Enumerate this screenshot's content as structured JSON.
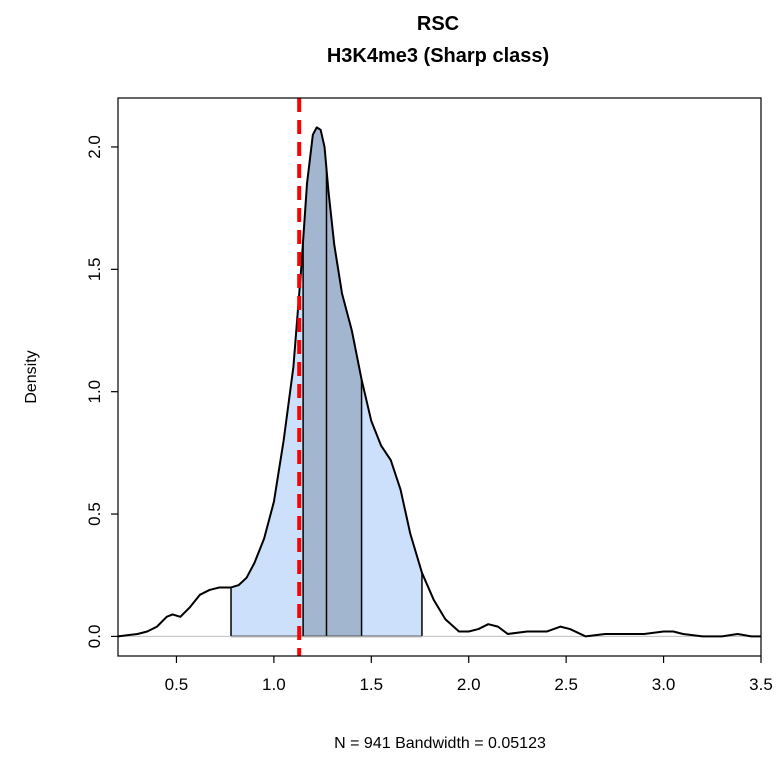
{
  "chart_data": {
    "type": "area",
    "title": "RSC",
    "subtitle": "H3K4me3 (Sharp class)",
    "xlabel": "N = 941   Bandwidth = 0.05123",
    "ylabel": "Density",
    "xlim": [
      0.2,
      3.5
    ],
    "ylim": [
      -0.08,
      2.2
    ],
    "x_ticks": [
      0.5,
      1.0,
      1.5,
      2.0,
      2.5,
      3.0,
      3.5
    ],
    "x_tick_labels": [
      "0.5",
      "1.0",
      "1.5",
      "2.0",
      "2.5",
      "3.0",
      "3.5"
    ],
    "y_ticks": [
      0.0,
      0.5,
      1.0,
      1.5,
      2.0
    ],
    "y_tick_labels": [
      "0.0",
      "0.5",
      "1.0",
      "1.5",
      "2.0"
    ],
    "grid": false,
    "density": {
      "x": [
        0.2,
        0.3,
        0.35,
        0.4,
        0.45,
        0.48,
        0.52,
        0.57,
        0.62,
        0.67,
        0.72,
        0.78,
        0.82,
        0.86,
        0.9,
        0.95,
        1.0,
        1.05,
        1.1,
        1.14,
        1.17,
        1.2,
        1.22,
        1.24,
        1.26,
        1.28,
        1.31,
        1.35,
        1.4,
        1.45,
        1.5,
        1.55,
        1.6,
        1.65,
        1.7,
        1.76,
        1.82,
        1.88,
        1.95,
        2.0,
        2.05,
        2.1,
        2.15,
        2.2,
        2.3,
        2.4,
        2.47,
        2.52,
        2.6,
        2.7,
        2.8,
        2.9,
        3.0,
        3.05,
        3.1,
        3.2,
        3.3,
        3.38,
        3.45,
        3.5
      ],
      "y": [
        0.0,
        0.01,
        0.02,
        0.04,
        0.08,
        0.09,
        0.08,
        0.12,
        0.17,
        0.19,
        0.2,
        0.2,
        0.21,
        0.24,
        0.3,
        0.4,
        0.55,
        0.8,
        1.1,
        1.5,
        1.85,
        2.05,
        2.08,
        2.07,
        2.0,
        1.82,
        1.6,
        1.4,
        1.25,
        1.05,
        0.88,
        0.78,
        0.72,
        0.6,
        0.42,
        0.26,
        0.15,
        0.07,
        0.02,
        0.02,
        0.03,
        0.05,
        0.04,
        0.01,
        0.02,
        0.02,
        0.04,
        0.03,
        0.0,
        0.01,
        0.01,
        0.01,
        0.02,
        0.02,
        0.01,
        0.0,
        0.0,
        0.01,
        0.0,
        0.0
      ]
    },
    "outer_shade": {
      "from": 0.78,
      "to": 1.76,
      "color": "#cce0fb"
    },
    "inner_shade": {
      "from": 1.15,
      "to": 1.45,
      "color": "#a3b6cf"
    },
    "quantile_lines": [
      1.15,
      1.27,
      1.45
    ],
    "reference_line": {
      "x": 1.13,
      "color": "#ff0000",
      "style": "dashed"
    },
    "baseline_color": "#bebebe",
    "curve_color": "#000000"
  }
}
